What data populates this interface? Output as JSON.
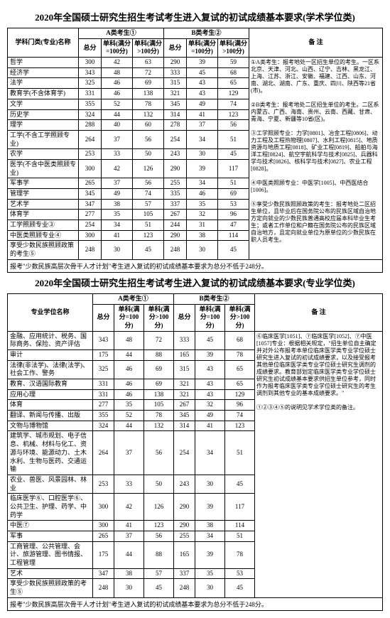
{
  "table1": {
    "title": "2020年全国硕士研究生招生考试考生进入复试的初试成绩基本要求(学术学位类)",
    "col_name": "学科门类(专业)名称",
    "groupA": "A类考生①",
    "groupB": "B类考生②",
    "sub_total": "总分",
    "sub_sub1": "单科(满分=100分)",
    "sub_sub2": "单科(满分>100分)",
    "notes_header": "备 注",
    "rows": [
      {
        "name": "哲学",
        "a": [
          300,
          42,
          63
        ],
        "b": [
          290,
          39,
          59
        ]
      },
      {
        "name": "经济学",
        "a": [
          343,
          48,
          72
        ],
        "b": [
          333,
          45,
          68
        ]
      },
      {
        "name": "法学",
        "a": [
          325,
          46,
          69
        ],
        "b": [
          315,
          43,
          65
        ]
      },
      {
        "name": "教育学(不含体育学)",
        "a": [
          331,
          46,
          138
        ],
        "b": [
          321,
          43,
          129
        ]
      },
      {
        "name": "文学",
        "a": [
          355,
          52,
          78
        ],
        "b": [
          345,
          49,
          74
        ]
      },
      {
        "name": "历史学",
        "a": [
          324,
          44,
          132
        ],
        "b": [
          314,
          41,
          123
        ]
      },
      {
        "name": "理学",
        "a": [
          288,
          40,
          60
        ],
        "b": [
          278,
          37,
          56
        ]
      },
      {
        "name": "工学(不含工学照顾专业)",
        "a": [
          264,
          37,
          56
        ],
        "b": [
          254,
          34,
          51
        ]
      },
      {
        "name": "农学",
        "a": [
          253,
          33,
          50
        ],
        "b": [
          243,
          30,
          45
        ]
      },
      {
        "name": "医学(不含中医类照顾专业)",
        "a": [
          300,
          42,
          126
        ],
        "b": [
          290,
          39,
          117
        ]
      },
      {
        "name": "军事学",
        "a": [
          265,
          37,
          56
        ],
        "b": [
          255,
          34,
          51
        ]
      },
      {
        "name": "管理学",
        "a": [
          345,
          49,
          74
        ],
        "b": [
          335,
          46,
          69
        ]
      },
      {
        "name": "艺术学",
        "a": [
          347,
          38,
          57
        ],
        "b": [
          337,
          35,
          53
        ]
      },
      {
        "name": "体育学",
        "a": [
          277,
          35,
          105
        ],
        "b": [
          267,
          32,
          96
        ]
      },
      {
        "name": "工学照顾专业③",
        "a": [
          254,
          34,
          51
        ],
        "b": [
          244,
          31,
          47
        ]
      },
      {
        "name": "中医类照顾专业④",
        "a": [
          300,
          41,
          123
        ],
        "b": [
          290,
          38,
          114
        ]
      },
      {
        "name": "享受少数民族照顾政策的考生⑤",
        "a": [
          248,
          30,
          45
        ],
        "b": [
          248,
          30,
          45
        ]
      }
    ],
    "notes": "①A类考生：报考地处一区招生单位的考生。一区系北京、天津、河北、山西、辽宁、吉林、黑龙江、上海、江苏、浙江、安徽、福建、江西、山东、河南、湖北、湖南、广东、重庆、四川、陕西等21省(市)。\n\n②B类考生：报考地处二区招生单位的考生。二区系内蒙古、广西、海南、贵州、云南、西藏、甘肃、青海、宁夏、新疆等10省(区)。\n\n③工学照顾专业：力学[0801]、冶金工程[0806]、动力工程及工程热物理[0807]、水利工程[0815]、地质资源与地质工程[0818]、矿业工程[0819]、船舶与海洋工程[0824]、航空宇航科学与技术[0825]、兵器科学与技术[0826]、核科学与技术[0827]、农业工程[0828]。\n\n④中医类照顾专业：中医学[1005]、中西医结合[1006]。\n\n⑤享受少数民族照顾政策的考生：报考地处二区招生单位，且毕业后在国务院公布的民族区域自治地方定向就业的少数民族普通高校应届本科毕业生考生；或者工作单位和户籍在国务院公布的民族区域自治地方，且定向就业单位为原单位的少数民族在职人员考生。",
    "footnote": "报考\"少数民族高层次骨干人才计划\"考生进入复试的初试成绩基本要求为总分不低于248分。"
  },
  "table2": {
    "title": "2020年全国硕士研究生招生考试考生进入复试的初试成绩基本要求(专业学位类)",
    "col_name": "专业学位名称",
    "groupA": "A类考生①",
    "groupB": "B类考生②",
    "sub_total": "总分",
    "sub_sub1": "单科(满分=100分)",
    "sub_sub2": "单科(满分>100分)",
    "notes_header": "备 注",
    "rows": [
      {
        "name": "金融、应用统计、税务、国际商务、保险、资产评估",
        "a": [
          343,
          48,
          72
        ],
        "b": [
          333,
          45,
          68
        ]
      },
      {
        "name": "审计",
        "a": [
          175,
          44,
          88
        ],
        "b": [
          165,
          39,
          78
        ]
      },
      {
        "name": "法律(非法学)、法律(法学)、社会工作、警务",
        "a": [
          325,
          46,
          69
        ],
        "b": [
          315,
          43,
          65
        ]
      },
      {
        "name": "教育、汉语国际教育",
        "a": [
          331,
          46,
          69
        ],
        "b": [
          321,
          43,
          65
        ]
      },
      {
        "name": "应用心理",
        "a": [
          331,
          46,
          138
        ],
        "b": [
          321,
          43,
          129
        ]
      },
      {
        "name": "体育",
        "a": [
          277,
          35,
          105
        ],
        "b": [
          267,
          32,
          96
        ]
      },
      {
        "name": "翻译、新闻与传播、出版",
        "a": [
          355,
          52,
          78
        ],
        "b": [
          345,
          49,
          74
        ]
      },
      {
        "name": "文物与博物馆",
        "a": [
          324,
          44,
          132
        ],
        "b": [
          314,
          41,
          123
        ]
      },
      {
        "name": "建筑学、城市规划、电子信息、机械、材料与化工、资源与环境、能源动力、土木水利、生物与医药、交通运输",
        "a": [
          264,
          37,
          56
        ],
        "b": [
          254,
          34,
          51
        ]
      },
      {
        "name": "农业、兽医、风景园林、林业",
        "a": [
          253,
          33,
          50
        ],
        "b": [
          243,
          30,
          45
        ]
      },
      {
        "name": "临床医学⑥、口腔医学⑥、公共卫生、护理、药学、中药学",
        "a": [
          300,
          42,
          126
        ],
        "b": [
          290,
          39,
          117
        ]
      },
      {
        "name": "中医⑦",
        "a": [
          300,
          41,
          123
        ],
        "b": [
          290,
          38,
          114
        ]
      },
      {
        "name": "军事",
        "a": [
          265,
          37,
          56
        ],
        "b": [
          255,
          34,
          51
        ]
      },
      {
        "name": "工商管理、公共管理、会计、旅游管理、图书情报、工程管理",
        "a": [
          175,
          44,
          88
        ],
        "b": [
          165,
          39,
          78
        ]
      },
      {
        "name": "艺术",
        "a": [
          347,
          38,
          57
        ],
        "b": [
          337,
          35,
          53
        ]
      },
      {
        "name": "享受少数民族照顾政策的考生⑤",
        "a": [
          248,
          30,
          45
        ],
        "b": [
          248,
          30,
          45
        ]
      }
    ],
    "notes": "⑥临床医学[1051]、⑦临床医学[1052]、⑦中医[1057]专业：根据相关规定，\"招生单位自主确定并对外公布报考本单位临床医学类专业学位硕士研究生进入复试的初试成绩要求，以及接受报考其他单位临床医学类专业学位硕士研究生调剂的成绩要求。教育部划定临床医学类专业学位硕士研究生初试成绩基本要求供招生单位参考，同时作为报考临床医学类专业学位硕士研究生的考生调剂到其他专业的基本成绩要求。\"\n\n①②③④⑤的说明见学术学位类的备注。",
    "footnote": "报考\"少数民族高层次骨干人才计划\"考生进入复试的初试成绩基本要求为总分不低于248分。"
  }
}
